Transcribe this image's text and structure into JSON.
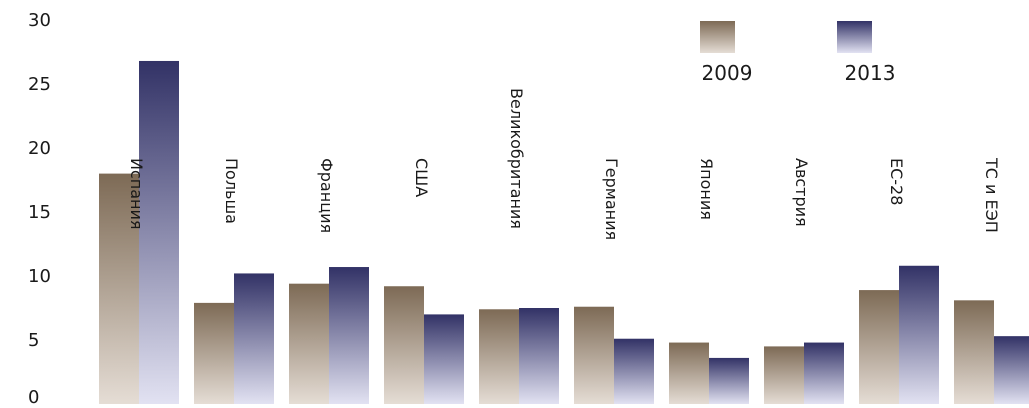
{
  "chart_data": {
    "type": "bar",
    "title": "",
    "xlabel": "",
    "ylabel": "",
    "ylim": [
      0,
      30
    ],
    "yticks": [
      0,
      5,
      10,
      15,
      20,
      25,
      30
    ],
    "grid": false,
    "legend_position": "top-right",
    "categories": [
      "Испания",
      "Польша",
      "Франция",
      "США",
      "Великобритания",
      "Германия",
      "Япония",
      "Австрия",
      "ЕС-28",
      "ТС и ЕЭП"
    ],
    "series": [
      {
        "name": "2009",
        "values": [
          18.0,
          7.9,
          9.4,
          9.2,
          7.4,
          7.6,
          4.8,
          4.5,
          8.9,
          8.1
        ],
        "color_top": "#7d6a55",
        "color_bottom": "#e5ddd5"
      },
      {
        "name": "2013",
        "values": [
          26.8,
          10.2,
          10.7,
          7.0,
          7.5,
          5.1,
          3.6,
          4.8,
          10.8,
          5.3
        ],
        "color_top": "#323266",
        "color_bottom": "#e2e2f2"
      }
    ]
  }
}
